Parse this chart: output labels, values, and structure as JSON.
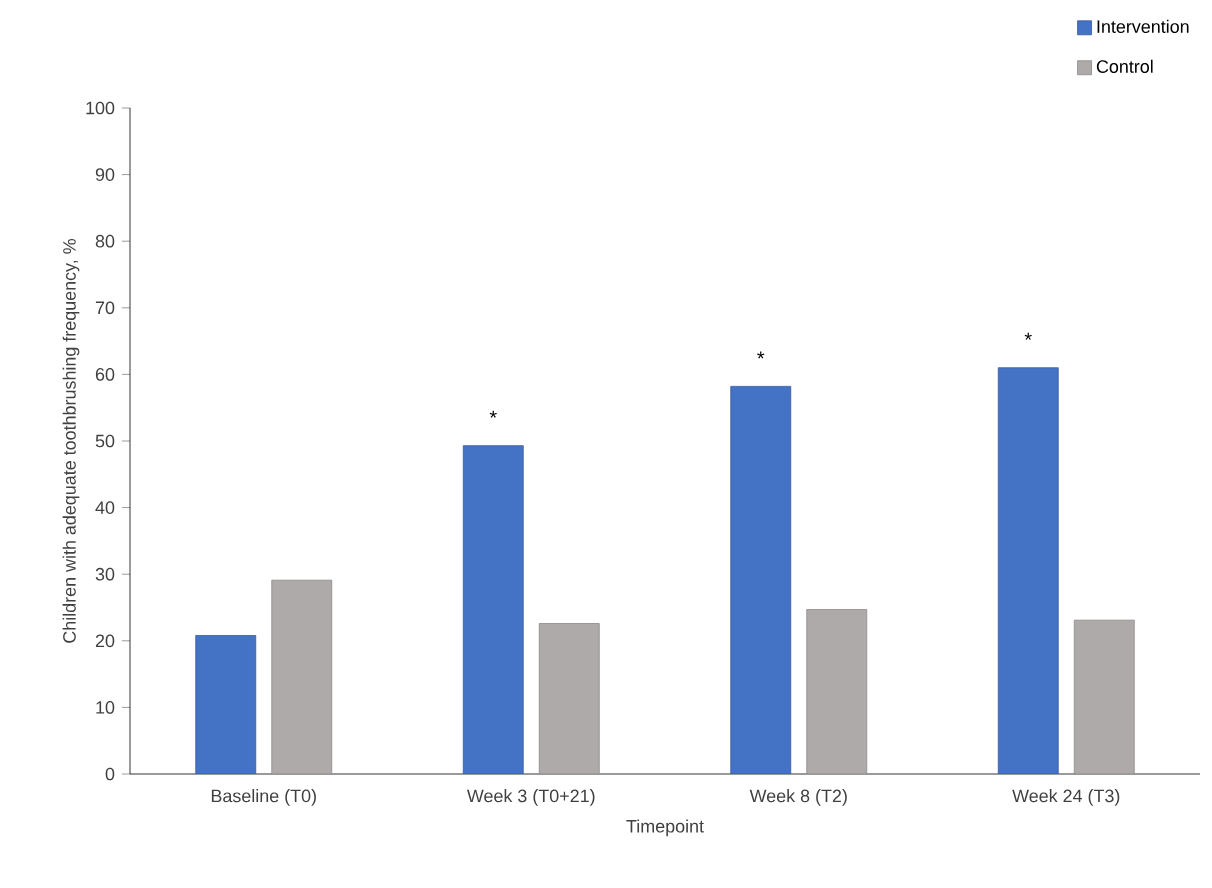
{
  "chart_data": {
    "type": "bar",
    "xlabel": "Timepoint",
    "ylabel": "Children with adequate toothbrushing frequency, %",
    "categories": [
      "Baseline (T0)",
      "Week 3 (T0+21)",
      "Week 8 (T2)",
      "Week 24 (T3)"
    ],
    "series": [
      {
        "name": "Intervention",
        "color": "#4472c4",
        "values": [
          20.8,
          49.3,
          58.2,
          61.0
        ]
      },
      {
        "name": "Control",
        "color": "#aeaaaa",
        "values": [
          29.1,
          22.6,
          24.7,
          23.1
        ]
      }
    ],
    "ylim": [
      0,
      100
    ],
    "yticks": [
      0,
      10,
      20,
      30,
      40,
      50,
      60,
      70,
      80,
      90,
      100
    ],
    "grid": false,
    "legend": "top right",
    "annotations": [
      {
        "text": "*",
        "x": "Week 3 (T0+21)",
        "y": 49.3
      },
      {
        "text": "*",
        "x": "Week 8 (T2)",
        "y": 58.2
      },
      {
        "text": "*",
        "x": "Week 24 (T3)",
        "y": 61.0
      }
    ]
  }
}
